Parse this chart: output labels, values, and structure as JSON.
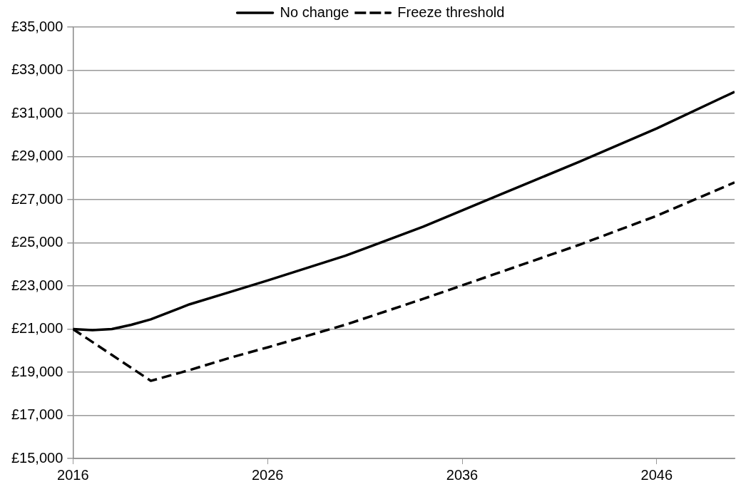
{
  "chart_data": {
    "type": "line",
    "x": [
      2016,
      2017,
      2018,
      2019,
      2020,
      2022,
      2024,
      2026,
      2030,
      2034,
      2038,
      2042,
      2046,
      2050
    ],
    "series": [
      {
        "name": "No change",
        "color": "#000000",
        "line_style": "solid",
        "values": [
          21000,
          20950,
          21000,
          21200,
          21450,
          22150,
          22700,
          23250,
          24400,
          25750,
          27250,
          28750,
          30300,
          32000
        ]
      },
      {
        "name": "Freeze threshold",
        "color": "#000000",
        "line_style": "dashed",
        "x": [
          2016,
          2018,
          2020,
          2022,
          2024,
          2026,
          2030,
          2034,
          2038,
          2042,
          2046,
          2050
        ],
        "values": [
          21000,
          19800,
          18600,
          19100,
          19650,
          20150,
          21200,
          22400,
          23650,
          24900,
          26250,
          27800
        ]
      }
    ],
    "xlim": [
      2016,
      2050
    ],
    "xticks": [
      2016,
      2026,
      2036,
      2046
    ],
    "ylim": [
      15000,
      35000
    ],
    "yticks": [
      {
        "value": 15000,
        "label": "£15,000"
      },
      {
        "value": 17000,
        "label": "£17,000"
      },
      {
        "value": 19000,
        "label": "£19,000"
      },
      {
        "value": 21000,
        "label": "£21,000"
      },
      {
        "value": 23000,
        "label": "£23,000"
      },
      {
        "value": 25000,
        "label": "£25,000"
      },
      {
        "value": 27000,
        "label": "£27,000"
      },
      {
        "value": 29000,
        "label": "£29,000"
      },
      {
        "value": 31000,
        "label": "£31,000"
      },
      {
        "value": 33000,
        "label": "£33,000"
      },
      {
        "value": 35000,
        "label": "£35,000"
      }
    ],
    "grid": "y",
    "legend": "top",
    "marker": "none"
  }
}
